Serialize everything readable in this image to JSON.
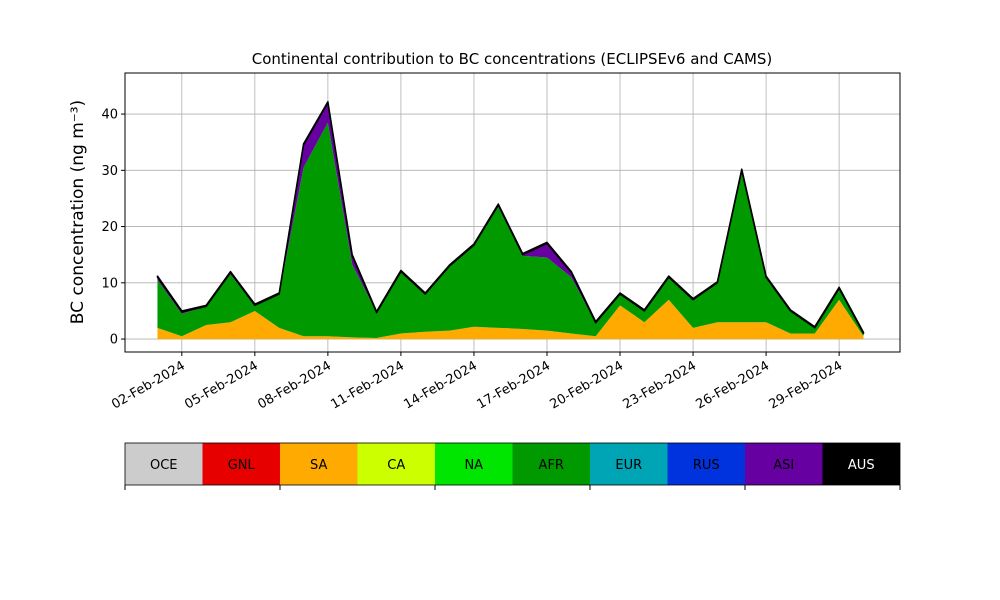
{
  "chart_data": {
    "type": "stacked_area",
    "title": "Continental contribution to BC concentrations (ECLIPSEv6 and CAMS)",
    "y_label": "BC concentration (ng m⁻³)",
    "x": [
      "2024-02-01",
      "2024-02-02",
      "2024-02-03",
      "2024-02-04",
      "2024-02-05",
      "2024-02-06",
      "2024-02-07",
      "2024-02-08",
      "2024-02-09",
      "2024-02-10",
      "2024-02-11",
      "2024-02-12",
      "2024-02-13",
      "2024-02-14",
      "2024-02-15",
      "2024-02-16",
      "2024-02-17",
      "2024-02-18",
      "2024-02-19",
      "2024-02-20",
      "2024-02-21",
      "2024-02-22",
      "2024-02-23",
      "2024-02-24",
      "2024-02-25",
      "2024-02-26",
      "2024-02-27",
      "2024-02-28",
      "2024-02-29",
      "2024-03-01"
    ],
    "xlim": [
      "2024-01-30T16:00",
      "2024-03-02T12:00"
    ],
    "xticks": [
      {
        "value": "2024-02-02",
        "label": "02-Feb-2024"
      },
      {
        "value": "2024-02-05",
        "label": "05-Feb-2024"
      },
      {
        "value": "2024-02-08",
        "label": "08-Feb-2024"
      },
      {
        "value": "2024-02-11",
        "label": "11-Feb-2024"
      },
      {
        "value": "2024-02-14",
        "label": "14-Feb-2024"
      },
      {
        "value": "2024-02-17",
        "label": "17-Feb-2024"
      },
      {
        "value": "2024-02-20",
        "label": "20-Feb-2024"
      },
      {
        "value": "2024-02-23",
        "label": "23-Feb-2024"
      },
      {
        "value": "2024-02-26",
        "label": "26-Feb-2024"
      },
      {
        "value": "2024-02-29",
        "label": "29-Feb-2024"
      }
    ],
    "ylim": [
      -2.3,
      47.3
    ],
    "yticks": [
      0,
      10,
      20,
      30,
      40
    ],
    "grid": true,
    "series": [
      {
        "name": "OCE",
        "color": "#cccccc",
        "values": [
          0,
          0,
          0,
          0,
          0,
          0,
          0,
          0,
          0,
          0,
          0,
          0,
          0,
          0,
          0,
          0,
          0,
          0,
          0,
          0,
          0,
          0,
          0,
          0,
          0,
          0,
          0,
          0,
          0,
          0
        ]
      },
      {
        "name": "GNL",
        "color": "#e60000",
        "values": [
          0,
          0,
          0,
          0,
          0,
          0,
          0,
          0,
          0,
          0,
          0,
          0,
          0,
          0,
          0,
          0,
          0,
          0,
          0,
          0,
          0,
          0,
          0,
          0,
          0,
          0,
          0,
          0,
          0,
          0
        ]
      },
      {
        "name": "SA",
        "color": "#ffaa00",
        "values": [
          2,
          0.5,
          2.5,
          3,
          5,
          2,
          0.5,
          0.5,
          0.3,
          0.2,
          1,
          1.3,
          1.5,
          2.2,
          2,
          1.8,
          1.5,
          1,
          0.5,
          6,
          3,
          7,
          2,
          3,
          3,
          3,
          1,
          1,
          7,
          0.5
        ]
      },
      {
        "name": "CA",
        "color": "#ccff00",
        "values": [
          0,
          0,
          0,
          0,
          0,
          0,
          0,
          0,
          0,
          0,
          0,
          0,
          0,
          0,
          0,
          0,
          0,
          0,
          0,
          0,
          0,
          0,
          0,
          0,
          0,
          0,
          0,
          0,
          0,
          0
        ]
      },
      {
        "name": "NA",
        "color": "#00e600",
        "values": [
          0,
          0,
          0,
          0,
          0,
          0,
          0,
          0,
          0,
          0,
          0,
          0,
          0,
          0,
          0,
          0,
          0,
          0,
          0,
          0,
          0,
          0,
          0,
          0,
          0,
          0,
          0,
          0,
          0,
          0
        ]
      },
      {
        "name": "AFR",
        "color": "#009900",
        "values": [
          8.5,
          4,
          3.3,
          8.5,
          1,
          6,
          30,
          38,
          13,
          4.5,
          11,
          6.7,
          11.5,
          14.5,
          21.5,
          13,
          13,
          10,
          2.4,
          2,
          2,
          4,
          5,
          7,
          26.5,
          8,
          4,
          1,
          2,
          0.5
        ]
      },
      {
        "name": "EUR",
        "color": "#00a5b5",
        "values": [
          0,
          0,
          0,
          0,
          0,
          0,
          0,
          0,
          0,
          0,
          0,
          0,
          0,
          0,
          0,
          0,
          0,
          0,
          0,
          0,
          0,
          0,
          0,
          0,
          0,
          0,
          0,
          0,
          0,
          0
        ]
      },
      {
        "name": "RUS",
        "color": "#0033dd",
        "values": [
          0,
          0,
          0,
          0,
          0,
          0,
          0,
          0,
          0,
          0,
          0,
          0,
          0,
          0,
          0,
          0,
          0,
          0,
          0,
          0,
          0,
          0,
          0,
          0,
          0,
          0,
          0,
          0,
          0,
          0
        ]
      },
      {
        "name": "ASI",
        "color": "#6600a0",
        "values": [
          0.5,
          0.3,
          0,
          0.3,
          0,
          0,
          4,
          3.5,
          1.5,
          0,
          0,
          0,
          0,
          0,
          0.3,
          0.2,
          2.5,
          0.8,
          0,
          0,
          0,
          0,
          0,
          0,
          0.5,
          0,
          0,
          0,
          0,
          0
        ]
      },
      {
        "name": "AUS",
        "color": "#000000",
        "values": [
          0.2,
          0.2,
          0.2,
          0.2,
          0.2,
          0.2,
          0.2,
          0.2,
          0.2,
          0.2,
          0.2,
          0.2,
          0.2,
          0.2,
          0.2,
          0.2,
          0.2,
          0.2,
          0.2,
          0.2,
          0.2,
          0.2,
          0.2,
          0.2,
          0.2,
          0.2,
          0.2,
          0.2,
          0.2,
          0.2
        ]
      }
    ]
  }
}
